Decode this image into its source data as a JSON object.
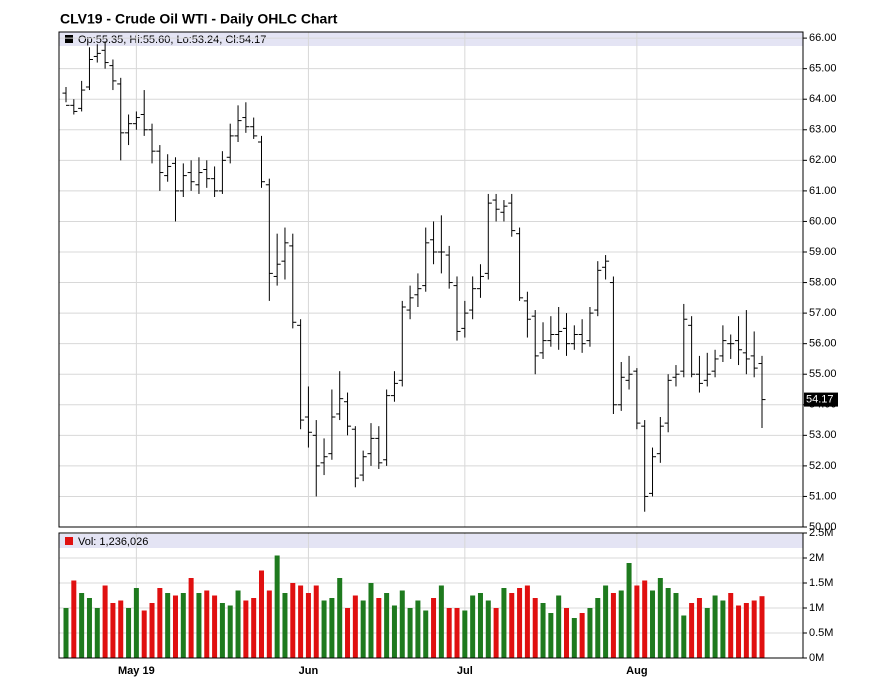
{
  "chart_data": {
    "type": "ohlc",
    "title": "CLV19 - Crude Oil WTI - Daily OHLC Chart",
    "ohlc_legend": "Op:55.35, Hi:55.60, Lo:53.24, Cl:54.17",
    "volume_legend": "Vol: 1,236,026",
    "last_price": 54.17,
    "bar_color": "#000000",
    "up_volume_color": "#1e7a1e",
    "down_volume_color": "#e01010",
    "grid": true,
    "categories": [
      null,
      null,
      null,
      null,
      null,
      null,
      null,
      null,
      null,
      "May 19",
      null,
      null,
      null,
      null,
      null,
      null,
      null,
      null,
      null,
      null,
      null,
      null,
      null,
      null,
      null,
      null,
      null,
      null,
      null,
      null,
      null,
      "Jun",
      null,
      null,
      null,
      null,
      null,
      null,
      null,
      null,
      null,
      null,
      null,
      null,
      null,
      null,
      null,
      null,
      null,
      null,
      null,
      "Jul",
      null,
      null,
      null,
      null,
      null,
      null,
      null,
      null,
      null,
      null,
      null,
      null,
      null,
      null,
      null,
      null,
      null,
      null,
      null,
      null,
      null,
      "Aug",
      null,
      null,
      null,
      null,
      null,
      null,
      null,
      null,
      null,
      null,
      null,
      null,
      null,
      null,
      null,
      null
    ],
    "open": [
      64.2,
      63.8,
      63.7,
      64.4,
      65.4,
      65.6,
      65.1,
      64.5,
      62.9,
      63.2,
      63.5,
      63.0,
      62.3,
      61.5,
      61.9,
      61.0,
      61.6,
      61.2,
      61.7,
      61.4,
      61.0,
      62.1,
      62.8,
      63.4,
      63.1,
      62.6,
      61.2,
      58.2,
      58.7,
      59.2,
      56.6,
      53.6,
      53.0,
      52.1,
      52.4,
      53.7,
      54.1,
      53.2,
      51.7,
      52.4,
      52.9,
      52.2,
      54.3,
      54.8,
      57.1,
      57.6,
      57.9,
      59.4,
      59.0,
      58.9,
      57.9,
      56.5,
      57.1,
      57.8,
      58.3,
      60.7,
      60.3,
      60.6,
      59.6,
      57.4,
      56.9,
      55.7,
      56.1,
      56.3,
      56.5,
      56.0,
      56.3,
      56.1,
      57.1,
      58.5,
      58.0,
      54.0,
      54.8,
      55.1,
      53.3,
      51.1,
      52.4,
      53.4,
      54.9,
      55.1,
      56.6,
      55.0,
      54.8,
      55.1,
      55.6,
      56.0,
      56.1,
      55.7,
      55.6,
      55.35
    ],
    "high": [
      64.4,
      64.0,
      64.6,
      65.7,
      65.8,
      65.9,
      65.3,
      64.7,
      63.5,
      63.6,
      64.3,
      63.2,
      62.5,
      62.2,
      62.1,
      61.9,
      62.0,
      62.1,
      62.0,
      61.8,
      62.3,
      63.2,
      63.8,
      63.9,
      63.4,
      62.8,
      61.4,
      59.6,
      59.8,
      59.6,
      56.8,
      54.6,
      53.5,
      52.9,
      54.5,
      55.1,
      54.4,
      53.3,
      52.5,
      53.4,
      53.3,
      54.5,
      55.1,
      57.4,
      57.9,
      58.3,
      59.8,
      60.0,
      60.2,
      59.2,
      58.2,
      57.4,
      58.2,
      58.6,
      60.9,
      60.9,
      60.7,
      60.9,
      59.8,
      57.7,
      57.1,
      56.7,
      56.9,
      57.2,
      57.0,
      56.6,
      56.8,
      57.2,
      58.7,
      58.9,
      58.2,
      55.4,
      55.6,
      55.2,
      53.5,
      52.6,
      53.6,
      55.0,
      55.3,
      57.3,
      56.9,
      55.6,
      55.7,
      55.8,
      56.6,
      56.3,
      56.9,
      57.1,
      56.4,
      55.6
    ],
    "low": [
      63.9,
      63.5,
      63.6,
      64.3,
      65.2,
      65.0,
      64.3,
      62.0,
      62.5,
      63.0,
      62.8,
      61.9,
      61.0,
      61.3,
      60.0,
      60.8,
      61.0,
      60.9,
      61.1,
      60.8,
      60.9,
      61.9,
      62.6,
      62.9,
      62.7,
      61.1,
      57.4,
      57.9,
      58.1,
      56.5,
      53.2,
      52.6,
      51.0,
      51.7,
      52.2,
      53.5,
      53.0,
      51.3,
      51.5,
      52.0,
      51.9,
      52.0,
      54.1,
      54.6,
      56.8,
      57.2,
      57.7,
      58.6,
      58.3,
      57.8,
      56.1,
      56.2,
      56.8,
      57.5,
      58.1,
      60.0,
      60.0,
      59.5,
      57.4,
      56.2,
      55.0,
      55.5,
      55.9,
      55.8,
      55.6,
      55.8,
      55.7,
      55.9,
      56.9,
      58.1,
      53.7,
      53.8,
      54.5,
      53.2,
      50.5,
      51.0,
      52.1,
      53.1,
      54.6,
      54.9,
      54.9,
      54.4,
      54.6,
      54.9,
      55.4,
      55.5,
      55.3,
      55.0,
      54.9,
      53.24
    ],
    "close": [
      63.8,
      63.6,
      64.3,
      65.3,
      65.5,
      65.2,
      64.6,
      62.9,
      63.2,
      63.4,
      63.0,
      62.3,
      61.6,
      61.8,
      61.0,
      61.5,
      61.3,
      61.6,
      61.4,
      61.0,
      62.0,
      62.8,
      63.3,
      63.1,
      62.8,
      61.3,
      58.3,
      58.6,
      59.3,
      56.7,
      53.5,
      53.1,
      52.0,
      52.3,
      53.6,
      54.2,
      53.3,
      51.6,
      52.3,
      52.9,
      52.1,
      54.3,
      54.7,
      57.2,
      57.5,
      57.8,
      59.3,
      59.0,
      59.0,
      58.0,
      56.4,
      57.0,
      57.8,
      58.2,
      60.6,
      60.4,
      60.5,
      59.7,
      57.5,
      56.8,
      55.6,
      56.1,
      56.3,
      56.4,
      56.0,
      56.3,
      56.0,
      57.0,
      58.4,
      58.7,
      54.0,
      54.9,
      55.0,
      53.4,
      51.0,
      52.3,
      53.3,
      54.8,
      55.0,
      56.8,
      55.0,
      54.7,
      55.0,
      55.5,
      56.1,
      56.0,
      55.8,
      55.5,
      55.2,
      54.17
    ],
    "volume": [
      1000000,
      1550000,
      1300000,
      1200000,
      1000000,
      1450000,
      1100000,
      1150000,
      1000000,
      1400000,
      950000,
      1100000,
      1400000,
      1300000,
      1250000,
      1300000,
      1600000,
      1300000,
      1350000,
      1250000,
      1100000,
      1050000,
      1350000,
      1150000,
      1200000,
      1750000,
      1350000,
      2050000,
      1300000,
      1500000,
      1450000,
      1300000,
      1450000,
      1150000,
      1200000,
      1600000,
      1000000,
      1250000,
      1150000,
      1500000,
      1200000,
      1300000,
      1050000,
      1350000,
      1000000,
      1150000,
      950000,
      1200000,
      1450000,
      1000000,
      1000000,
      950000,
      1250000,
      1300000,
      1150000,
      1000000,
      1400000,
      1300000,
      1400000,
      1450000,
      1200000,
      1100000,
      900000,
      1250000,
      1000000,
      800000,
      900000,
      1000000,
      1200000,
      1450000,
      1300000,
      1350000,
      1900000,
      1450000,
      1550000,
      1350000,
      1600000,
      1400000,
      1300000,
      850000,
      1100000,
      1200000,
      1000000,
      1250000,
      1150000,
      1300000,
      1050000,
      1100000,
      1150000,
      1236026
    ],
    "ylim": [
      50,
      66.2
    ],
    "yticks": [
      {
        "value": 50,
        "label": "50.00"
      },
      {
        "value": 51,
        "label": "51.00"
      },
      {
        "value": 52,
        "label": "52.00"
      },
      {
        "value": 53,
        "label": "53.00"
      },
      {
        "value": 54,
        "label": "54.00"
      },
      {
        "value": 55,
        "label": "55.00"
      },
      {
        "value": 56,
        "label": "56.00"
      },
      {
        "value": 57,
        "label": "57.00"
      },
      {
        "value": 58,
        "label": "58.00"
      },
      {
        "value": 59,
        "label": "59.00"
      },
      {
        "value": 60,
        "label": "60.00"
      },
      {
        "value": 61,
        "label": "61.00"
      },
      {
        "value": 62,
        "label": "62.00"
      },
      {
        "value": 63,
        "label": "63.00"
      },
      {
        "value": 64,
        "label": "64.00"
      },
      {
        "value": 65,
        "label": "65.00"
      },
      {
        "value": 66,
        "label": "66.00"
      }
    ],
    "y2lim": [
      0,
      2500000
    ],
    "y2ticks": [
      {
        "value": 0,
        "label": "0M"
      },
      {
        "value": 500000,
        "label": "0.5M"
      },
      {
        "value": 1000000,
        "label": "1M"
      },
      {
        "value": 1500000,
        "label": "1.5M"
      },
      {
        "value": 2000000,
        "label": "2M"
      },
      {
        "value": 2500000,
        "label": "2.5M"
      }
    ]
  }
}
